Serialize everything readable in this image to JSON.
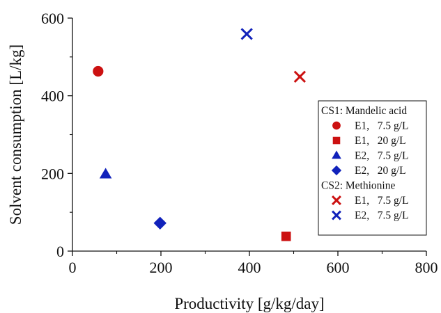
{
  "chart_data": {
    "type": "scatter",
    "xlabel": "Productivity [g/kg/day]",
    "ylabel": "Solvent consumption [L/kg]",
    "xlim": [
      0,
      800
    ],
    "ylim": [
      0,
      600
    ],
    "x_ticks": [
      "0",
      "200",
      "400",
      "600",
      "800"
    ],
    "y_ticks": [
      "0",
      "200",
      "400",
      "600"
    ],
    "grid": false,
    "legend_position": "right",
    "legend_groups": [
      {
        "title": "CS1: Mandelic acid",
        "entries": [
          {
            "marker": "circle",
            "color": "#cc1111",
            "label": "E1,   7.5 g/L"
          },
          {
            "marker": "square",
            "color": "#cc1111",
            "label": "E1,   20 g/L"
          },
          {
            "marker": "triangle",
            "color": "#1122bb",
            "label": "E2,   7.5 g/L"
          },
          {
            "marker": "diamond",
            "color": "#1122bb",
            "label": "E2,   20 g/L"
          }
        ]
      },
      {
        "title": "CS2: Methionine",
        "entries": [
          {
            "marker": "x",
            "color": "#cc1111",
            "label": "E1,   7.5 g/L"
          },
          {
            "marker": "x",
            "color": "#1122bb",
            "label": "E2,   7.5 g/L"
          }
        ]
      }
    ],
    "series": [
      {
        "marker": "circle",
        "color": "#cc1111",
        "points": [
          [
            58,
            463
          ]
        ]
      },
      {
        "marker": "square",
        "color": "#cc1111",
        "points": [
          [
            483,
            38
          ]
        ]
      },
      {
        "marker": "triangle",
        "color": "#1122bb",
        "points": [
          [
            75,
            198
          ]
        ]
      },
      {
        "marker": "diamond",
        "color": "#1122bb",
        "points": [
          [
            198,
            72
          ]
        ]
      },
      {
        "marker": "x",
        "color": "#cc1111",
        "points": [
          [
            514,
            449
          ]
        ]
      },
      {
        "marker": "x",
        "color": "#1122bb",
        "points": [
          [
            394,
            559
          ]
        ]
      }
    ]
  }
}
